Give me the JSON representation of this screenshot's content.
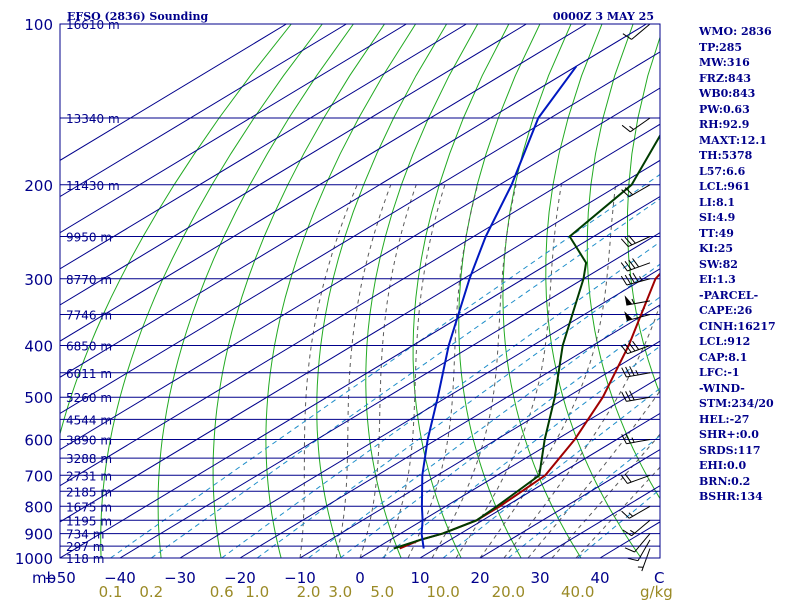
{
  "header": {
    "left_title": "EFSO (2836) Sounding",
    "right_title": "0000Z  3 MAY 25"
  },
  "chart_data": {
    "type": "line",
    "subtype": "skew-T log-P diagram",
    "pressure_axis": {
      "unit_label": "mb",
      "levels": [
        100,
        200,
        300,
        400,
        500,
        600,
        700,
        800,
        900,
        1000
      ],
      "range": [
        1000,
        100
      ],
      "scale": "log"
    },
    "temperature_axis": {
      "ticks": [
        -50,
        -40,
        -30,
        -20,
        -10,
        0,
        10,
        20,
        30,
        40
      ],
      "end_label": "C",
      "range": [
        -50,
        50
      ]
    },
    "mixing_ratio_axis": {
      "unit_label": "g/kg",
      "ticks": [
        "0.1",
        "0.2",
        "0.6",
        "1.0",
        "2.0",
        "3.0",
        "5.0",
        "10.0",
        "20.0",
        "40.0"
      ],
      "tick_values": [
        0.1,
        0.2,
        0.6,
        1.0,
        2.0,
        3.0,
        5.0,
        10.0,
        20.0,
        40.0
      ]
    },
    "height_labels": [
      {
        "p": 100,
        "text": "16610 m"
      },
      {
        "p": 150,
        "text": "13340 m"
      },
      {
        "p": 200,
        "text": "11430 m"
      },
      {
        "p": 250,
        "text": "9950 m"
      },
      {
        "p": 300,
        "text": "8770 m"
      },
      {
        "p": 350,
        "text": "7746 m"
      },
      {
        "p": 400,
        "text": "6850 m"
      },
      {
        "p": 450,
        "text": "6011 m"
      },
      {
        "p": 500,
        "text": "5260 m"
      },
      {
        "p": 550,
        "text": "4544 m"
      },
      {
        "p": 600,
        "text": "3890 m"
      },
      {
        "p": 650,
        "text": "3288 m"
      },
      {
        "p": 700,
        "text": "2731 m"
      },
      {
        "p": 750,
        "text": "2185 m"
      },
      {
        "p": 800,
        "text": "1675 m"
      },
      {
        "p": 850,
        "text": "1195 m"
      },
      {
        "p": 900,
        "text": "734 m"
      },
      {
        "p": 950,
        "text": "297 m"
      },
      {
        "p": 1000,
        "text": "118 m"
      }
    ],
    "series": [
      {
        "key": "temperature",
        "points": [
          [
            960,
            4.0
          ],
          [
            925,
            5.0
          ],
          [
            900,
            7.0
          ],
          [
            850,
            9.0
          ],
          [
            800,
            9.0
          ],
          [
            700,
            8.0
          ],
          [
            600,
            3.0
          ],
          [
            500,
            -4.0
          ],
          [
            400,
            -14.0
          ],
          [
            300,
            -28.0
          ],
          [
            280,
            -30.0
          ],
          [
            250,
            -28.0
          ],
          [
            200,
            -26.0
          ],
          [
            150,
            -30.0
          ],
          [
            120,
            -30.0
          ],
          [
            100,
            -35.0
          ]
        ]
      },
      {
        "key": "dewpoint",
        "points": [
          [
            960,
            3.0
          ],
          [
            925,
            5.0
          ],
          [
            900,
            7.0
          ],
          [
            850,
            9.0
          ],
          [
            800,
            8.5
          ],
          [
            700,
            7.0
          ],
          [
            600,
            -2.0
          ],
          [
            500,
            -12.0
          ],
          [
            400,
            -25.0
          ],
          [
            300,
            -40.0
          ],
          [
            280,
            -44.0
          ],
          [
            250,
            -54.0
          ],
          [
            200,
            -58.0
          ],
          [
            150,
            -70.0
          ],
          [
            120,
            -80.0
          ],
          [
            100,
            -88.0
          ]
        ]
      },
      {
        "key": "parcel",
        "points": [
          [
            960,
            8.0
          ],
          [
            900,
            3.5
          ],
          [
            850,
            0.0
          ],
          [
            800,
            -4.0
          ],
          [
            700,
            -12.5
          ],
          [
            600,
            -21.5
          ],
          [
            500,
            -31.5
          ],
          [
            400,
            -44.0
          ],
          [
            300,
            -59.0
          ],
          [
            250,
            -68.0
          ],
          [
            200,
            -78.0
          ],
          [
            150,
            -92.0
          ],
          [
            120,
            -100.0
          ]
        ]
      }
    ],
    "wind_barbs": [
      {
        "p": 960,
        "dir": 200,
        "spd": 5
      },
      {
        "p": 925,
        "dir": 210,
        "spd": 10
      },
      {
        "p": 900,
        "dir": 220,
        "spd": 10
      },
      {
        "p": 850,
        "dir": 230,
        "spd": 15
      },
      {
        "p": 800,
        "dir": 240,
        "spd": 15
      },
      {
        "p": 700,
        "dir": 250,
        "spd": 20
      },
      {
        "p": 600,
        "dir": 260,
        "spd": 25
      },
      {
        "p": 500,
        "dir": 260,
        "spd": 30
      },
      {
        "p": 450,
        "dir": 260,
        "spd": 35
      },
      {
        "p": 400,
        "dir": 250,
        "spd": 40
      },
      {
        "p": 350,
        "dir": 255,
        "spd": 50
      },
      {
        "p": 330,
        "dir": 260,
        "spd": 55
      },
      {
        "p": 300,
        "dir": 255,
        "spd": 45
      },
      {
        "p": 280,
        "dir": 250,
        "spd": 40
      },
      {
        "p": 250,
        "dir": 245,
        "spd": 30
      },
      {
        "p": 200,
        "dir": 240,
        "spd": 20
      },
      {
        "p": 150,
        "dir": 235,
        "spd": 15
      },
      {
        "p": 100,
        "dir": 230,
        "spd": 10
      }
    ],
    "grid": true,
    "legend": "none"
  },
  "stats": [
    "WMO: 2836",
    "TP:285",
    "MW:316",
    "FRZ:843",
    "WB0:843",
    "PW:0.63",
    "RH:92.9",
    "MAXT:12.1",
    "TH:5378",
    "L57:6.6",
    "LCL:961",
    "LI:8.1",
    "SI:4.9",
    "TT:49",
    "KI:25",
    "SW:82",
    "EI:1.3",
    "-PARCEL-",
    "CAPE:26",
    "CINH:16217",
    "LCL:912",
    "CAP:8.1",
    "LFC:-1",
    "-WIND-",
    "STM:234/20",
    "HEL:-27",
    "SHR+:0.0",
    "SRDS:117",
    "EHI:0.0",
    "BRN:0.2",
    "BSHR:134"
  ],
  "colors": {
    "frame": "#00008b",
    "isobar": "#00008b",
    "isotherm": "#00008b",
    "dry_adiabat": "#22aa22",
    "moist_adiabat": "#5a5a5a",
    "mixing_ratio": "#1f8ec9",
    "temperature": "#a00000",
    "dewpoint": "#003c00",
    "parcel": "#0018c0",
    "barb": "#000000",
    "mixing_label": "#9a8a26"
  }
}
